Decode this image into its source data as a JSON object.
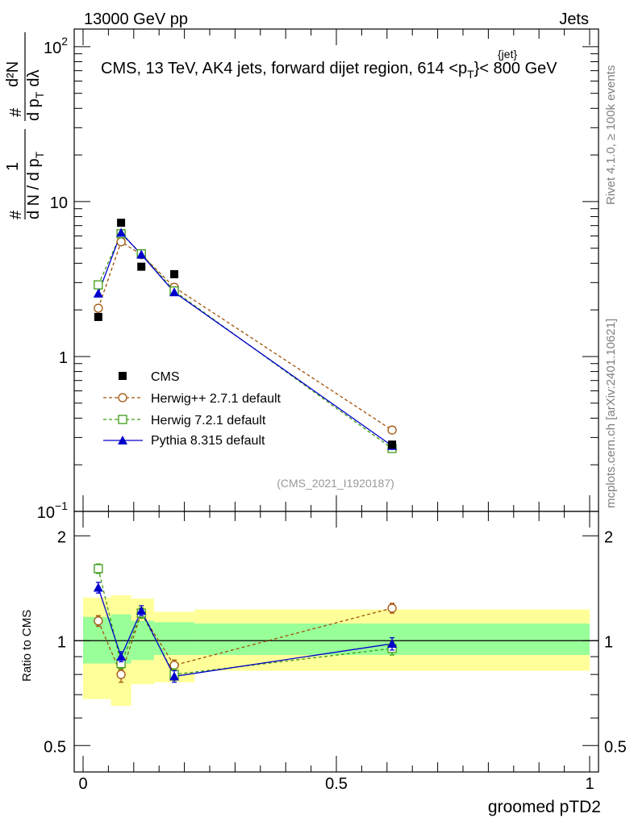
{
  "header": {
    "left": "13000 GeV pp",
    "right": "Jets"
  },
  "side_labels": {
    "rivet": "Rivet 4.1.0, ≥ 100k events",
    "mcplots": "mcplots.cern.ch [arXiv:2401.10621]"
  },
  "colors": {
    "cms": "#000000",
    "herwigpp": "#a0520a",
    "herwig7": "#3c9b14",
    "pythia": "#0000cc",
    "band_inner": "#99ff99",
    "band_outer": "#ffff99"
  },
  "chart_data": [
    {
      "type": "line",
      "scale": "log",
      "title_parts": {
        "prefix": "CMS, 13 TeV, AK4 jets, forward dijet region, 614 <p",
        "sub": "T",
        "sup": "{jet}",
        "suffix": "}< 800 GeV"
      },
      "ylabel_parts": {
        "frac_top": "1",
        "frac_bottom": "d N / d p",
        "frac_bottom_sub": "T",
        "hash1": "#",
        "hash2": "#",
        "deriv_top": "d²N",
        "deriv_bottom": "d p",
        "deriv_bottom_sub": "T",
        "deriv_dl": "dλ"
      },
      "ylim": [
        0.1,
        130
      ],
      "ytick_labels": [
        {
          "value": 0.1,
          "base": "10",
          "exp": "−1"
        },
        {
          "value": 1,
          "base": "1",
          "exp": ""
        },
        {
          "value": 10,
          "base": "10",
          "exp": ""
        },
        {
          "value": 100,
          "base": "10",
          "exp": "2"
        }
      ],
      "watermark": "(CMS_2021_I1920187)",
      "legend_position": "bottom-left",
      "x": [
        0.03,
        0.075,
        0.115,
        0.18,
        0.61
      ],
      "series": [
        {
          "name": "CMS",
          "key": "cms",
          "marker": "square",
          "values": [
            1.8,
            7.3,
            3.8,
            3.4,
            0.27
          ]
        },
        {
          "name": "Herwig++ 2.7.1 default",
          "key": "herwigpp",
          "marker": "circle-open",
          "dashed": true,
          "values": [
            2.05,
            5.5,
            4.55,
            2.8,
            0.335
          ]
        },
        {
          "name": "Herwig 7.2.1 default",
          "key": "herwig7",
          "marker": "square-open",
          "dashed": true,
          "values": [
            2.9,
            6.2,
            4.6,
            2.65,
            0.255
          ]
        },
        {
          "name": "Pythia 8.315 default",
          "key": "pythia",
          "marker": "triangle",
          "dashed": false,
          "values": [
            2.55,
            6.3,
            4.55,
            2.6,
            0.265
          ]
        }
      ]
    },
    {
      "type": "line",
      "scale": "log",
      "ylabel": "Ratio to CMS",
      "xlabel": "groomed pTD2",
      "xlim": [
        0,
        1
      ],
      "ylim": [
        0.42,
        2.35
      ],
      "xtick_labels": [
        {
          "value": 0,
          "label": "0"
        },
        {
          "value": 0.5,
          "label": "0.5"
        },
        {
          "value": 1,
          "label": "1"
        }
      ],
      "ytick_labels": [
        {
          "value": 0.5,
          "label": "0.5"
        },
        {
          "value": 1,
          "label": "1"
        },
        {
          "value": 2,
          "label": "2"
        }
      ],
      "bands": [
        {
          "x0": 0.0,
          "x1": 0.055,
          "inner": [
            0.86,
            1.17
          ],
          "outer": [
            0.68,
            1.33
          ]
        },
        {
          "x0": 0.055,
          "x1": 0.095,
          "inner": [
            0.86,
            1.19
          ],
          "outer": [
            0.65,
            1.35
          ]
        },
        {
          "x0": 0.095,
          "x1": 0.14,
          "inner": [
            0.88,
            1.14
          ],
          "outer": [
            0.75,
            1.32
          ]
        },
        {
          "x0": 0.14,
          "x1": 0.22,
          "inner": [
            0.91,
            1.13
          ],
          "outer": [
            0.76,
            1.21
          ]
        },
        {
          "x0": 0.22,
          "x1": 1.0,
          "inner": [
            0.91,
            1.12
          ],
          "outer": [
            0.82,
            1.23
          ]
        }
      ],
      "series": [
        {
          "name": "Herwig++ 2.7.1 default",
          "key": "herwigpp",
          "dashed": true,
          "values": [
            1.14,
            0.8,
            1.2,
            0.85,
            1.24
          ],
          "errors": [
            0.04,
            0.04,
            0.04,
            0.03,
            0.04
          ]
        },
        {
          "name": "Herwig 7.2.1 default",
          "key": "herwig7",
          "dashed": true,
          "values": [
            1.61,
            0.86,
            1.2,
            0.8,
            0.95
          ],
          "errors": [
            0.05,
            0.03,
            0.04,
            0.03,
            0.04
          ]
        },
        {
          "name": "Pythia 8.315 default",
          "key": "pythia",
          "dashed": false,
          "values": [
            1.42,
            0.9,
            1.22,
            0.79,
            0.98
          ],
          "errors": [
            0.05,
            0.03,
            0.04,
            0.03,
            0.04
          ]
        }
      ]
    }
  ]
}
